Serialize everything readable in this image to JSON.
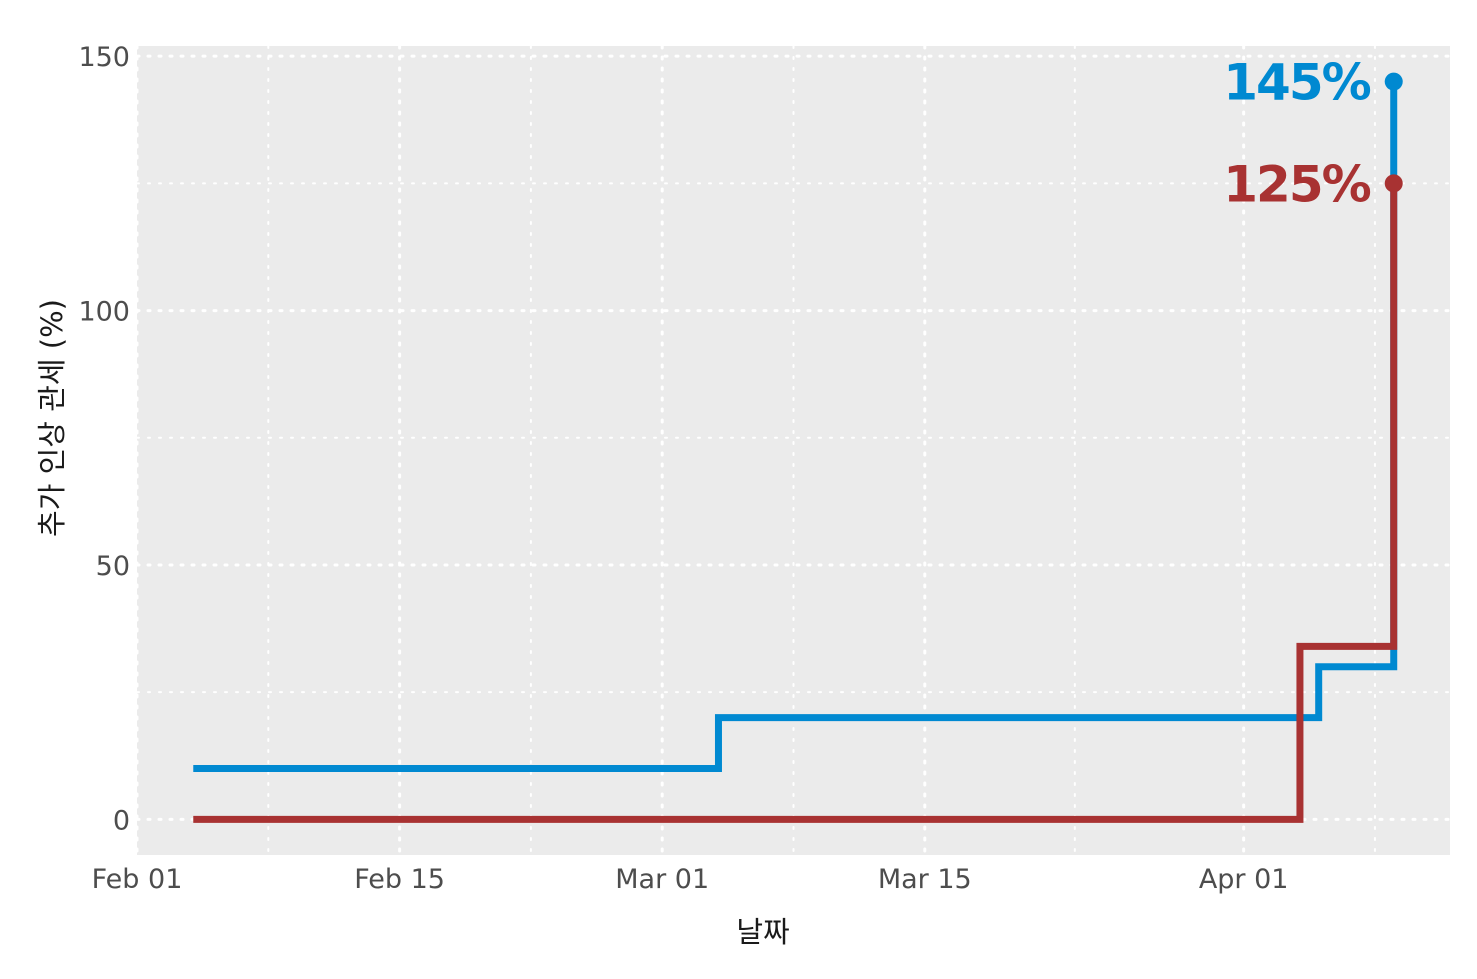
{
  "chart_data": {
    "type": "line",
    "step": true,
    "xlabel": "날짜",
    "ylabel": "추가 인상 관세 (%)",
    "xlim": [
      "2025-02-01",
      "2025-04-12"
    ],
    "ylim": [
      -7,
      152
    ],
    "x_ticks": [
      {
        "date": "2025-02-01",
        "label": "Feb 01"
      },
      {
        "date": "2025-02-15",
        "label": "Feb 15"
      },
      {
        "date": "2025-03-01",
        "label": "Mar 01"
      },
      {
        "date": "2025-03-15",
        "label": "Mar 15"
      },
      {
        "date": "2025-04-01",
        "label": "Apr 01"
      }
    ],
    "y_ticks": [
      0,
      50,
      100,
      150
    ],
    "y_minor_ticks": [
      25,
      75,
      125
    ],
    "grid": true,
    "series": [
      {
        "color": "#0089d1",
        "end_label": "145%",
        "points": [
          {
            "x": "2025-02-04",
            "y": 10
          },
          {
            "x": "2025-03-04",
            "y": 20
          },
          {
            "x": "2025-04-05",
            "y": 30
          },
          {
            "x": "2025-04-09",
            "y": 145
          }
        ]
      },
      {
        "color": "#a83232",
        "end_label": "125%",
        "points": [
          {
            "x": "2025-02-04",
            "y": 0
          },
          {
            "x": "2025-04-04",
            "y": 34
          },
          {
            "x": "2025-04-09",
            "y": 125
          }
        ]
      }
    ]
  }
}
